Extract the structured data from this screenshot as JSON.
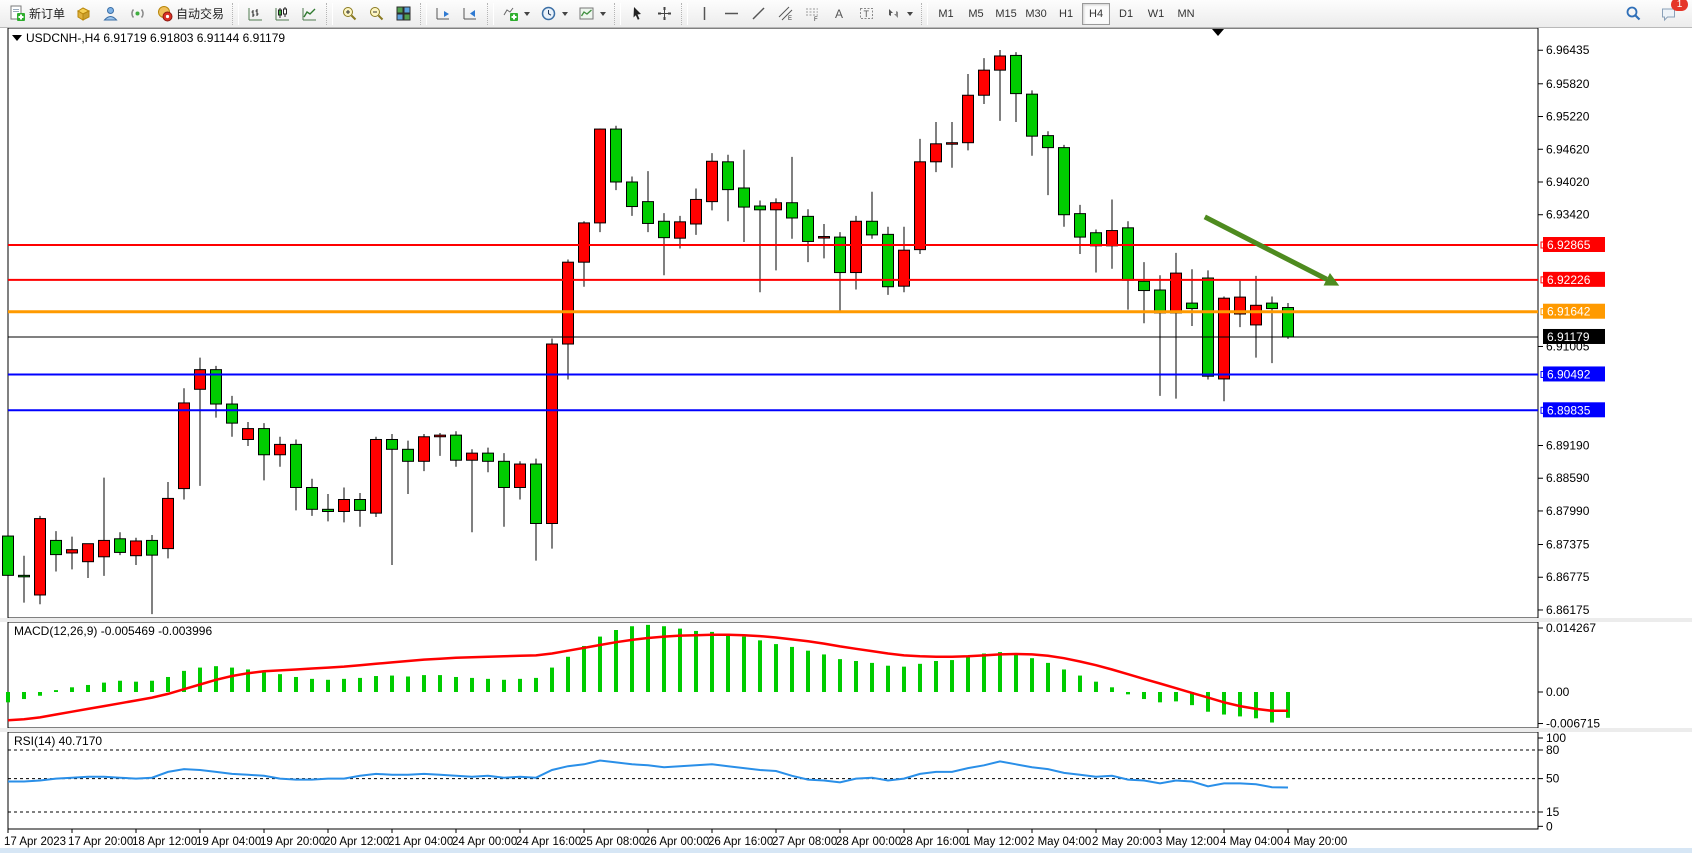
{
  "toolbar": {
    "new_order": "新订单",
    "autotrading": "自动交易",
    "timeframes": [
      "M1",
      "M5",
      "M15",
      "M30",
      "H1",
      "H4",
      "D1",
      "W1",
      "MN"
    ],
    "active_timeframe": "H4",
    "badge_count": "1"
  },
  "chart": {
    "title": "USDCNH-,H4",
    "ohlc": "6.91719 6.91803 6.91144 6.91179"
  },
  "chart_data": {
    "type": "candlestick",
    "symbol": "USDCNH-",
    "timeframe": "H4",
    "bull_color": "#ff0000",
    "bear_color": "#00cc00",
    "price_ticks": [
      6.96435,
      6.9582,
      6.9522,
      6.9462,
      6.9402,
      6.9342,
      6.91005,
      6.8919,
      6.8859,
      6.8799,
      6.87375,
      6.86775,
      6.86175
    ],
    "hlines": [
      {
        "price": 6.92865,
        "label": "6.92865",
        "color": "#ff0000",
        "width": 2
      },
      {
        "price": 6.92226,
        "label": "6.92226",
        "color": "#ff0000",
        "width": 2
      },
      {
        "price": 6.91642,
        "label": "6.91642",
        "color": "#ff9a00",
        "width": 3
      },
      {
        "price": 6.90492,
        "label": "6.90492",
        "color": "#0000ff",
        "width": 2
      },
      {
        "price": 6.89835,
        "label": "6.89835",
        "color": "#0000ff",
        "width": 2
      }
    ],
    "bid_line": {
      "price": 6.91179,
      "label": "6.91179",
      "color": "#000000"
    },
    "time_labels": [
      "17 Apr 2023",
      "17 Apr 20:00",
      "18 Apr 12:00",
      "19 Apr 04:00",
      "19 Apr 20:00",
      "20 Apr 12:00",
      "21 Apr 04:00",
      "24 Apr 00:00",
      "24 Apr 16:00",
      "25 Apr 08:00",
      "26 Apr 00:00",
      "26 Apr 16:00",
      "27 Apr 08:00",
      "28 Apr 00:00",
      "28 Apr 16:00",
      "1 May 12:00",
      "2 May 04:00",
      "2 May 20:00",
      "3 May 12:00",
      "4 May 04:00",
      "4 May 20:00"
    ],
    "candles": [
      [
        6.8753,
        6.8765,
        6.866,
        6.8681
      ],
      [
        6.8681,
        6.8717,
        6.8631,
        6.8679
      ],
      [
        6.8645,
        6.879,
        6.8628,
        6.8785
      ],
      [
        6.8745,
        6.8762,
        6.8688,
        6.8719
      ],
      [
        6.8722,
        6.8752,
        6.8692,
        6.8728
      ],
      [
        6.8706,
        6.8736,
        6.8676,
        6.8739
      ],
      [
        6.8715,
        6.886,
        6.868,
        6.8745
      ],
      [
        6.8748,
        6.876,
        6.8718,
        6.8723
      ],
      [
        6.8717,
        6.875,
        6.87,
        6.8744
      ],
      [
        6.8745,
        6.8755,
        6.861,
        6.8718
      ],
      [
        6.873,
        6.8852,
        6.8712,
        6.8822
      ],
      [
        6.884,
        6.9024,
        6.882,
        6.8997
      ],
      [
        6.9022,
        6.908,
        6.8845,
        6.9058
      ],
      [
        6.9058,
        6.9065,
        6.897,
        6.8995
      ],
      [
        6.8995,
        6.901,
        6.8935,
        6.896
      ],
      [
        6.893,
        6.8962,
        6.8918,
        6.895
      ],
      [
        6.895,
        6.896,
        6.8855,
        6.8902
      ],
      [
        6.8902,
        6.8935,
        6.888,
        6.8921
      ],
      [
        6.8921,
        6.893,
        6.88,
        6.8842
      ],
      [
        6.8842,
        6.8858,
        6.879,
        6.8802
      ],
      [
        6.8802,
        6.883,
        6.878,
        6.8798
      ],
      [
        6.8798,
        6.8842,
        6.8778,
        6.882
      ],
      [
        6.882,
        6.8832,
        6.877,
        6.88
      ],
      [
        6.8795,
        6.8935,
        6.8788,
        6.893
      ],
      [
        6.893,
        6.894,
        6.87,
        6.8912
      ],
      [
        6.8912,
        6.8928,
        6.883,
        6.889
      ],
      [
        6.889,
        6.894,
        6.8872,
        6.8935
      ],
      [
        6.8935,
        6.8942,
        6.89,
        6.8938
      ],
      [
        6.8938,
        6.8945,
        6.888,
        6.8892
      ],
      [
        6.8892,
        6.8912,
        6.876,
        6.8905
      ],
      [
        6.8905,
        6.8915,
        6.887,
        6.889
      ],
      [
        6.889,
        6.8905,
        6.877,
        6.8842
      ],
      [
        6.8842,
        6.889,
        6.882,
        6.8885
      ],
      [
        6.8885,
        6.8895,
        6.8708,
        6.8776
      ],
      [
        6.8776,
        6.9115,
        6.873,
        6.9105
      ],
      [
        6.9105,
        6.926,
        6.904,
        6.9255
      ],
      [
        6.9255,
        6.933,
        6.921,
        6.9327
      ],
      [
        6.9327,
        6.95,
        6.931,
        6.9499
      ],
      [
        6.9499,
        6.9505,
        6.9387,
        6.9402
      ],
      [
        6.9402,
        6.9412,
        6.934,
        6.9357
      ],
      [
        6.9366,
        6.9422,
        6.931,
        6.9326
      ],
      [
        6.933,
        6.9345,
        6.9231,
        6.93
      ],
      [
        6.9299,
        6.934,
        6.928,
        6.9329
      ],
      [
        6.9325,
        6.939,
        6.9305,
        6.937
      ],
      [
        6.9366,
        6.9455,
        6.935,
        6.944
      ],
      [
        6.9439,
        6.9452,
        6.933,
        6.9388
      ],
      [
        6.9391,
        6.9461,
        6.9292,
        6.9356
      ],
      [
        6.9358,
        6.9368,
        6.92,
        6.9351
      ],
      [
        6.9351,
        6.9372,
        6.924,
        6.9364
      ],
      [
        6.9364,
        6.9448,
        6.9298,
        6.9336
      ],
      [
        6.9339,
        6.9352,
        6.9255,
        6.9293
      ],
      [
        6.9301,
        6.9325,
        6.9262,
        6.9302
      ],
      [
        6.9301,
        6.931,
        6.9162,
        6.9236
      ],
      [
        6.9236,
        6.934,
        6.9205,
        6.933
      ],
      [
        6.933,
        6.9384,
        6.9298,
        6.9305
      ],
      [
        6.9306,
        6.932,
        6.9195,
        6.921
      ],
      [
        6.9211,
        6.932,
        6.92,
        6.9277
      ],
      [
        6.9278,
        6.9481,
        6.927,
        6.9439
      ],
      [
        6.9439,
        6.9512,
        6.942,
        6.9472
      ],
      [
        6.9472,
        6.9512,
        6.9428,
        6.9474
      ],
      [
        6.9474,
        6.96,
        6.946,
        6.9561
      ],
      [
        6.9561,
        6.9629,
        6.9545,
        6.9607
      ],
      [
        6.9607,
        6.9644,
        6.9514,
        6.9633
      ],
      [
        6.9634,
        6.964,
        6.9512,
        6.9564
      ],
      [
        6.9563,
        6.957,
        6.945,
        6.9486
      ],
      [
        6.9487,
        6.9495,
        6.9378,
        6.9465
      ],
      [
        6.9465,
        6.947,
        6.932,
        6.9342
      ],
      [
        6.9344,
        6.936,
        6.927,
        6.9301
      ],
      [
        6.9309,
        6.9315,
        6.9236,
        6.9285
      ],
      [
        6.9285,
        6.937,
        6.9243,
        6.9313
      ],
      [
        6.9318,
        6.933,
        6.9168,
        6.9222
      ],
      [
        6.922,
        6.9255,
        6.9143,
        6.9203
      ],
      [
        6.9204,
        6.9231,
        6.901,
        6.9162
      ],
      [
        6.9162,
        6.9272,
        6.9005,
        6.9235
      ],
      [
        6.918,
        6.9242,
        6.9138,
        6.917
      ],
      [
        6.9226,
        6.924,
        6.904,
        6.9046
      ],
      [
        6.9041,
        6.9192,
        6.9,
        6.9189
      ],
      [
        6.916,
        6.9221,
        6.9136,
        6.9191
      ],
      [
        6.914,
        6.923,
        6.908,
        6.9176
      ],
      [
        6.918,
        6.9192,
        6.907,
        6.917
      ],
      [
        6.91719,
        6.91803,
        6.91144,
        6.91179
      ]
    ],
    "arrow": {
      "from_bar": 74.8,
      "from_price": 6.9338,
      "to_bar": 83.2,
      "to_price": 6.9212,
      "color": "#4e8b1f"
    },
    "macd": {
      "label": "MACD(12,26,9) -0.005469 -0.003996",
      "ticks": [
        "0.014267",
        "0.00",
        "-0.006715"
      ],
      "tick_values": [
        0.014267,
        0,
        -0.006715
      ],
      "hist_color": "#00cc00",
      "signal_color": "#ff0000",
      "histogram": [
        -0.0022,
        -0.0015,
        -0.0008,
        0.0004,
        0.001,
        0.0015,
        0.002,
        0.0024,
        0.0022,
        0.0024,
        0.0032,
        0.0045,
        0.0052,
        0.0055,
        0.0052,
        0.0048,
        0.0042,
        0.0038,
        0.0032,
        0.0028,
        0.0026,
        0.0028,
        0.003,
        0.0034,
        0.0035,
        0.0033,
        0.0036,
        0.0036,
        0.0032,
        0.003,
        0.0028,
        0.0026,
        0.0028,
        0.003,
        0.0052,
        0.0075,
        0.0098,
        0.0118,
        0.0132,
        0.014,
        0.0143,
        0.014,
        0.0135,
        0.013,
        0.0128,
        0.0124,
        0.0118,
        0.011,
        0.0102,
        0.0096,
        0.0088,
        0.008,
        0.007,
        0.0066,
        0.0062,
        0.0056,
        0.0054,
        0.006,
        0.0066,
        0.0068,
        0.0075,
        0.0082,
        0.0085,
        0.008,
        0.0072,
        0.0062,
        0.0048,
        0.0035,
        0.0022,
        0.001,
        -0.0005,
        -0.0015,
        -0.0022,
        -0.002,
        -0.0028,
        -0.0042,
        -0.0048,
        -0.0052,
        -0.0056,
        -0.0065,
        -0.0055
      ],
      "signal": [
        -0.006,
        -0.0058,
        -0.0054,
        -0.0048,
        -0.0042,
        -0.0036,
        -0.003,
        -0.0024,
        -0.0018,
        -0.0012,
        -0.0004,
        0.0006,
        0.0016,
        0.0026,
        0.0034,
        0.004,
        0.0044,
        0.0046,
        0.0048,
        0.005,
        0.0052,
        0.0054,
        0.0057,
        0.006,
        0.0063,
        0.0066,
        0.0069,
        0.0071,
        0.0073,
        0.0074,
        0.0075,
        0.0076,
        0.0077,
        0.0078,
        0.0082,
        0.0088,
        0.0094,
        0.01,
        0.0106,
        0.0111,
        0.0115,
        0.0118,
        0.012,
        0.0121,
        0.0122,
        0.0122,
        0.0121,
        0.0119,
        0.0116,
        0.0112,
        0.0108,
        0.0103,
        0.0097,
        0.0092,
        0.0087,
        0.0082,
        0.0078,
        0.0076,
        0.0075,
        0.0075,
        0.0076,
        0.0078,
        0.008,
        0.0081,
        0.008,
        0.0077,
        0.0072,
        0.0065,
        0.0057,
        0.0048,
        0.0038,
        0.0028,
        0.0018,
        0.0008,
        -0.0002,
        -0.0012,
        -0.0022,
        -0.003,
        -0.0036,
        -0.004,
        -0.004
      ]
    },
    "rsi": {
      "label": "RSI(14) 40.7170",
      "ticks": [
        100,
        80,
        50,
        15,
        0
      ],
      "dashed_levels": [
        80,
        50,
        15
      ],
      "color": "#2a8fe8",
      "values": [
        47,
        47,
        48,
        50,
        51,
        52,
        52,
        51,
        50,
        51,
        57,
        60,
        59,
        57,
        55,
        54,
        53,
        50,
        49,
        49,
        50,
        50,
        53,
        55,
        54,
        54,
        55,
        54,
        53,
        52,
        53,
        51,
        52,
        51,
        59,
        63,
        65,
        69,
        67,
        65,
        64,
        62,
        63,
        64,
        65,
        63,
        61,
        59,
        58,
        53,
        49,
        48,
        46,
        50,
        51,
        48,
        50,
        55,
        57,
        57,
        61,
        64,
        68,
        65,
        62,
        60,
        56,
        54,
        52,
        53,
        49,
        48,
        45,
        48,
        47,
        42,
        45,
        45,
        44,
        41,
        40.7
      ]
    }
  }
}
